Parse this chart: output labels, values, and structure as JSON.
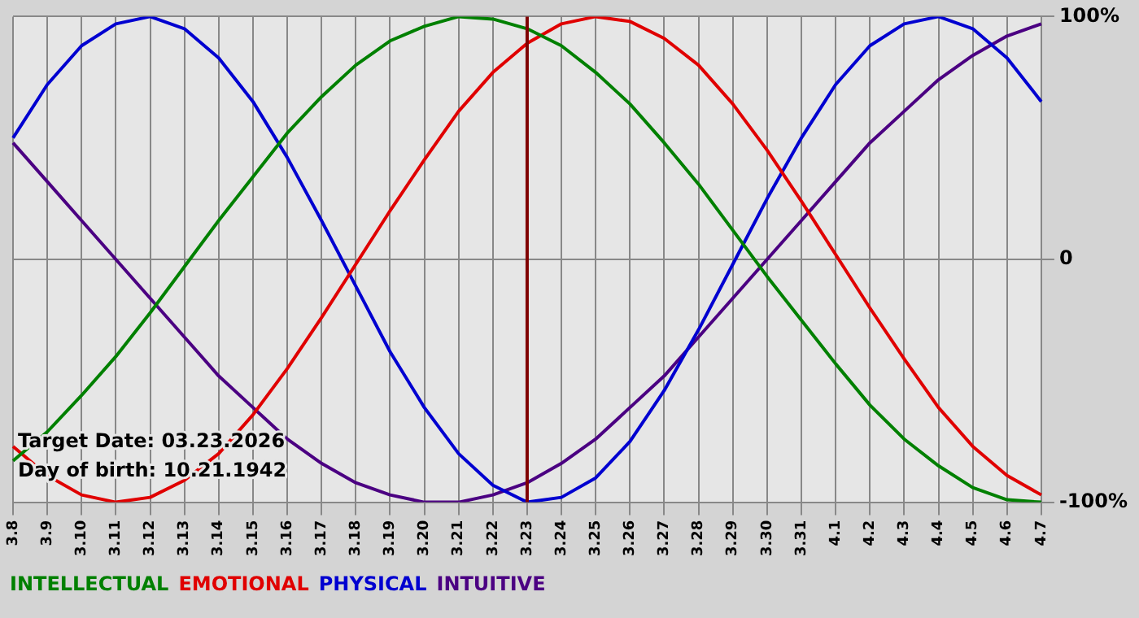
{
  "chart_data": {
    "type": "line",
    "categories": [
      "3.8",
      "3.9",
      "3.10",
      "3.11",
      "3.12",
      "3.13",
      "3.14",
      "3.15",
      "3.16",
      "3.17",
      "3.18",
      "3.19",
      "3.20",
      "3.21",
      "3.22",
      "3.23",
      "3.24",
      "3.25",
      "3.26",
      "3.27",
      "3.28",
      "3.29",
      "3.30",
      "3.31",
      "4.1",
      "4.2",
      "4.3",
      "4.4",
      "4.5",
      "4.6",
      "4.7"
    ],
    "series": [
      {
        "name": "INTELLECTUAL",
        "color": "#008000",
        "values": [
          -83,
          -71,
          -56,
          -40,
          -22,
          -3,
          16,
          34,
          52,
          67,
          80,
          90,
          96,
          100,
          99,
          95,
          88,
          77,
          64,
          48,
          31,
          12,
          -7,
          -25,
          -43,
          -60,
          -74,
          -85,
          -94,
          -99,
          -100
        ]
      },
      {
        "name": "EMOTIONAL",
        "color": "#e00000",
        "values": [
          -77,
          -89,
          -97,
          -100,
          -98,
          -91,
          -80,
          -64,
          -45,
          -24,
          -2,
          20,
          41,
          61,
          77,
          89,
          97,
          100,
          98,
          91,
          80,
          64,
          45,
          24,
          2,
          -20,
          -41,
          -61,
          -77,
          -89,
          -97
        ]
      },
      {
        "name": "PHYSICAL",
        "color": "#0000d0",
        "values": [
          50,
          72,
          88,
          97,
          100,
          95,
          83,
          65,
          42,
          16,
          -11,
          -38,
          -61,
          -80,
          -93,
          -100,
          -98,
          -90,
          -75,
          -54,
          -29,
          -2,
          25,
          50,
          72,
          88,
          97,
          100,
          95,
          83,
          65
        ]
      },
      {
        "name": "INTUITIVE",
        "color": "#4b0082",
        "values": [
          48,
          32,
          16,
          0,
          -16,
          -32,
          -48,
          -61,
          -74,
          -84,
          -92,
          -97,
          -100,
          -100,
          -97,
          -92,
          -84,
          -74,
          -61,
          -48,
          -32,
          -16,
          0,
          16,
          32,
          48,
          61,
          74,
          84,
          92,
          97
        ]
      }
    ],
    "ylim": [
      -100,
      100
    ],
    "yticks": [
      {
        "value": 100,
        "label": "100%"
      },
      0,
      {
        "value": -100,
        "label": "-100%"
      }
    ],
    "ref_lines": [
      {
        "axis": "x",
        "value": "3.23",
        "color": "#800000"
      }
    ],
    "annotations": [
      "Target Date: 03.23.2026",
      "Day of birth: 10.21.1942"
    ],
    "grid": true,
    "legend": "bottom",
    "marker": "none",
    "line_style": "solid"
  }
}
